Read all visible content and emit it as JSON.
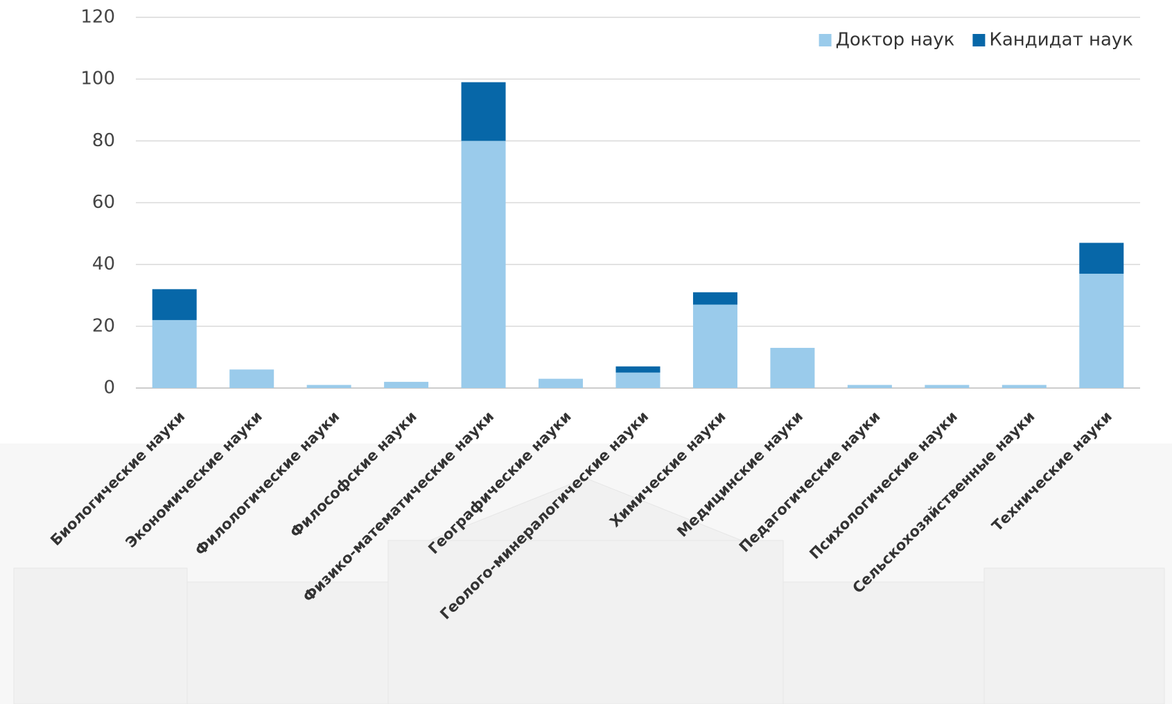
{
  "chart_data": {
    "type": "stacked-bar",
    "categories": [
      "Биологические науки",
      "Экономические науки",
      "Филологические науки",
      "Философские науки",
      "Физико-математические науки",
      "Географические науки",
      "Геолого-минералогические науки",
      "Химические науки",
      "Медицинские науки",
      "Педагогические науки",
      "Психологические науки",
      "Сельскохозяйственные науки",
      "Технические науки"
    ],
    "series": [
      {
        "name": "Доктор наук",
        "color": "#9acbeb",
        "values": [
          22,
          6,
          1,
          2,
          80,
          3,
          5,
          27,
          13,
          1,
          1,
          1,
          37
        ]
      },
      {
        "name": "Кандидат наук",
        "color": "#0767a8",
        "values": [
          10,
          0,
          0,
          0,
          19,
          0,
          2,
          4,
          0,
          0,
          0,
          0,
          10
        ]
      }
    ],
    "ylim": [
      0,
      120
    ],
    "yticks": [
      0,
      20,
      40,
      60,
      80,
      100,
      120
    ],
    "grid": true,
    "legend": "top-right"
  }
}
